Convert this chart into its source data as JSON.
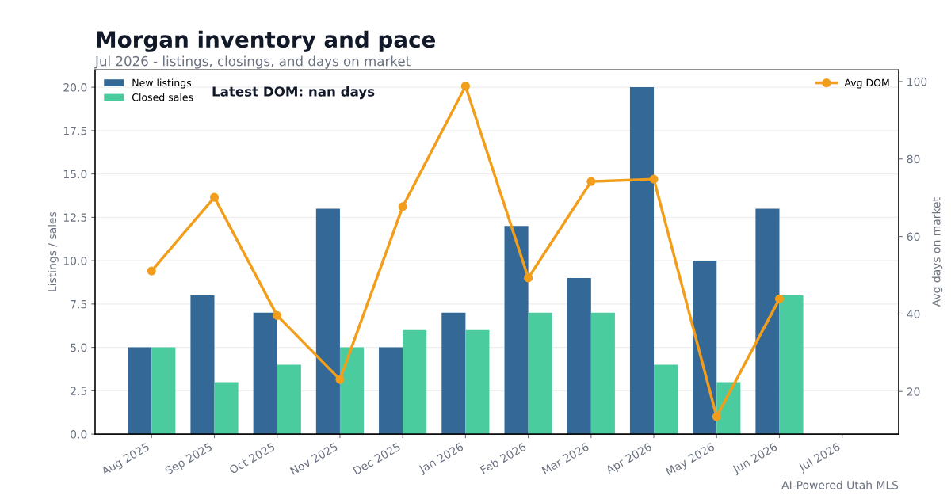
{
  "chart_data": {
    "type": "bar",
    "title": "Morgan inventory and pace",
    "subtitle": "Jul 2026 - listings, closings, and days on market",
    "ylabel": "Listings / sales",
    "y2label": "Avg days on market",
    "categories": [
      "Aug 2025",
      "Sep 2025",
      "Oct 2025",
      "Nov 2025",
      "Dec 2025",
      "Jan 2026",
      "Feb 2026",
      "Mar 2026",
      "Apr 2026",
      "May 2026",
      "Jun 2026",
      "Jul 2026"
    ],
    "series": [
      {
        "name": "New listings",
        "color": "#336897",
        "values": [
          5,
          8,
          7,
          13,
          5,
          7,
          12,
          9,
          20,
          10,
          13,
          0
        ]
      },
      {
        "name": "Closed sales",
        "color": "#4bcc9e",
        "values": [
          5,
          3,
          4,
          5,
          6,
          6,
          7,
          7,
          4,
          3,
          8,
          0
        ]
      },
      {
        "name": "Avg DOM",
        "type": "line",
        "axis": "y2",
        "color": "#f29e1b",
        "marker": "circle",
        "values": [
          51.1,
          70.1,
          39.6,
          23.1,
          67.7,
          98.8,
          49.3,
          74.2,
          74.8,
          13.5,
          43.9,
          null
        ]
      }
    ],
    "ylim": [
      0,
      21
    ],
    "yticks": [
      {
        "value": 0,
        "label": "0.0"
      },
      {
        "value": 2.5,
        "label": "2.5"
      },
      {
        "value": 5,
        "label": "5.0"
      },
      {
        "value": 7.5,
        "label": "7.5"
      },
      {
        "value": 10,
        "label": "10.0"
      },
      {
        "value": 12.5,
        "label": "12.5"
      },
      {
        "value": 15,
        "label": "15.0"
      },
      {
        "value": 17.5,
        "label": "17.5"
      },
      {
        "value": 20,
        "label": "20.0"
      }
    ],
    "y2lim": [
      9,
      103
    ],
    "y2ticks": [
      20,
      40,
      60,
      80,
      100
    ],
    "grid": "y",
    "legend": "top left",
    "annotations": [
      "Latest DOM: nan days",
      "AI-Powered Utah MLS"
    ]
  }
}
